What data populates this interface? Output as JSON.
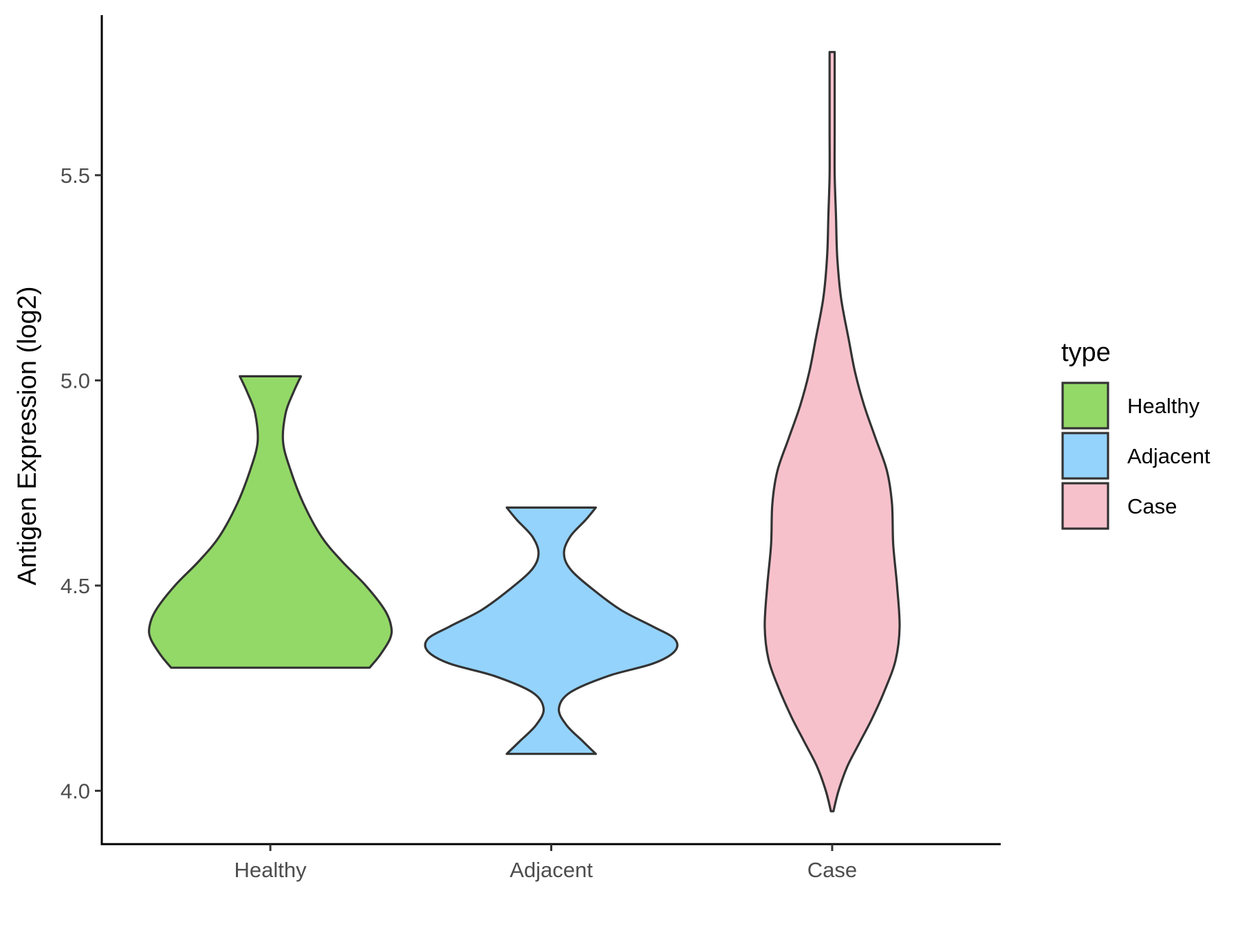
{
  "chart_data": {
    "type": "violin",
    "ylabel": "Antigen Expression (log2)",
    "xlabel": "",
    "categories": [
      "Healthy",
      "Adjacent",
      "Case"
    ],
    "ylim": [
      3.87,
      5.89
    ],
    "yticks": [
      4.0,
      4.5,
      5.0,
      5.5
    ],
    "ytick_labels": [
      "4.0",
      "4.5",
      "5.0",
      "5.5"
    ],
    "grid": false,
    "legend": {
      "title": "type",
      "position": "right",
      "entries": [
        "Healthy",
        "Adjacent",
        "Case"
      ]
    },
    "series": [
      {
        "name": "Healthy",
        "color": "#93d967",
        "range": [
          4.3,
          5.01
        ],
        "profile": [
          [
            4.3,
            0.78
          ],
          [
            4.33,
            0.86
          ],
          [
            4.37,
            0.94
          ],
          [
            4.4,
            0.95
          ],
          [
            4.44,
            0.9
          ],
          [
            4.5,
            0.75
          ],
          [
            4.56,
            0.56
          ],
          [
            4.62,
            0.4
          ],
          [
            4.7,
            0.26
          ],
          [
            4.78,
            0.16
          ],
          [
            4.85,
            0.1
          ],
          [
            4.92,
            0.12
          ],
          [
            4.97,
            0.18
          ],
          [
            5.01,
            0.24
          ]
        ]
      },
      {
        "name": "Adjacent",
        "color": "#94d3fc",
        "range": [
          4.09,
          4.69
        ],
        "profile": [
          [
            4.09,
            0.35
          ],
          [
            4.12,
            0.25
          ],
          [
            4.16,
            0.12
          ],
          [
            4.2,
            0.06
          ],
          [
            4.24,
            0.15
          ],
          [
            4.28,
            0.45
          ],
          [
            4.31,
            0.8
          ],
          [
            4.34,
            0.97
          ],
          [
            4.37,
            0.97
          ],
          [
            4.4,
            0.8
          ],
          [
            4.44,
            0.55
          ],
          [
            4.49,
            0.33
          ],
          [
            4.54,
            0.15
          ],
          [
            4.58,
            0.1
          ],
          [
            4.62,
            0.15
          ],
          [
            4.66,
            0.27
          ],
          [
            4.69,
            0.35
          ]
        ]
      },
      {
        "name": "Case",
        "color": "#f7c1cc",
        "range": [
          3.95,
          5.8
        ],
        "profile": [
          [
            3.95,
            0.01
          ],
          [
            4.0,
            0.05
          ],
          [
            4.06,
            0.12
          ],
          [
            4.12,
            0.22
          ],
          [
            4.18,
            0.32
          ],
          [
            4.25,
            0.42
          ],
          [
            4.32,
            0.5
          ],
          [
            4.4,
            0.53
          ],
          [
            4.5,
            0.51
          ],
          [
            4.6,
            0.48
          ],
          [
            4.7,
            0.47
          ],
          [
            4.78,
            0.43
          ],
          [
            4.86,
            0.34
          ],
          [
            4.94,
            0.25
          ],
          [
            5.02,
            0.18
          ],
          [
            5.1,
            0.13
          ],
          [
            5.2,
            0.07
          ],
          [
            5.3,
            0.04
          ],
          [
            5.4,
            0.03
          ],
          [
            5.5,
            0.02
          ],
          [
            5.6,
            0.02
          ],
          [
            5.7,
            0.02
          ],
          [
            5.8,
            0.02
          ]
        ]
      }
    ]
  }
}
